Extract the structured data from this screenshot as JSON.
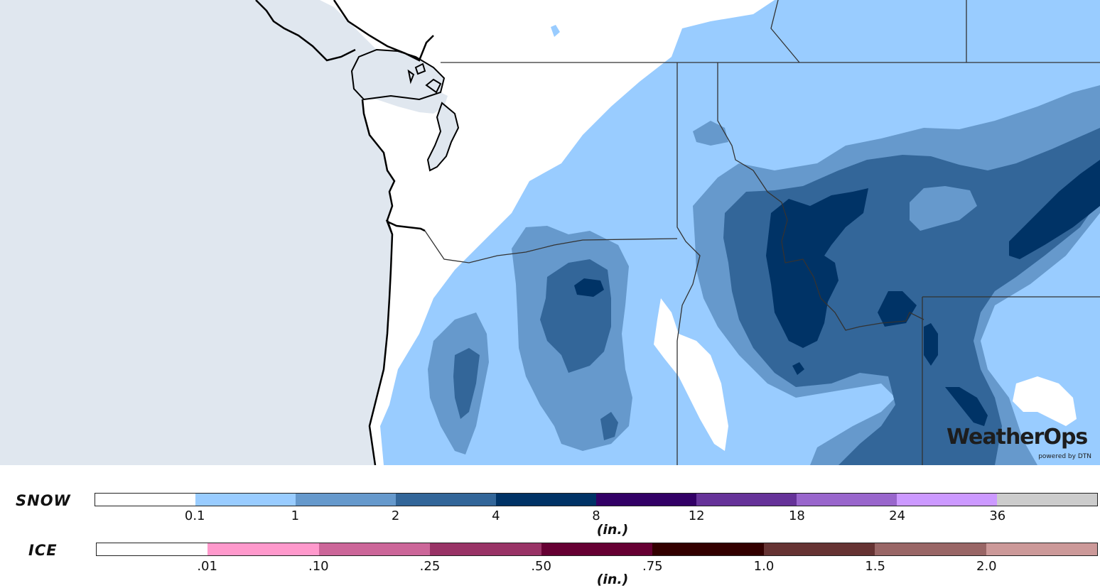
{
  "colors": {
    "ocean": "#e0e7ef",
    "land": "#ffffff",
    "snow_0_1": "#99ccff",
    "snow_1": "#6699cc",
    "snow_2": "#336699",
    "snow_4": "#003366"
  },
  "logo": {
    "name": "WeatherOps",
    "subtitle": "powered by DTN"
  },
  "snow": {
    "label": "SNOW",
    "unit": "(in.)",
    "colors": [
      "#ffffff",
      "#99ccff",
      "#6699cc",
      "#336699",
      "#003366",
      "#330066",
      "#663399",
      "#9966cc",
      "#cc99ff",
      "#cccccc"
    ],
    "ticks": [
      "0.1",
      "1",
      "2",
      "4",
      "8",
      "12",
      "18",
      "24",
      "36"
    ]
  },
  "ice": {
    "label": "ICE",
    "unit": "(in.)",
    "colors": [
      "#ffffff",
      "#ff99cc",
      "#cc6699",
      "#993366",
      "#660033",
      "#330000",
      "#663333",
      "#996666",
      "#cc9999"
    ],
    "ticks": [
      ".01",
      ".10",
      ".25",
      ".50",
      ".75",
      "1.0",
      "1.5",
      "2.0"
    ]
  }
}
